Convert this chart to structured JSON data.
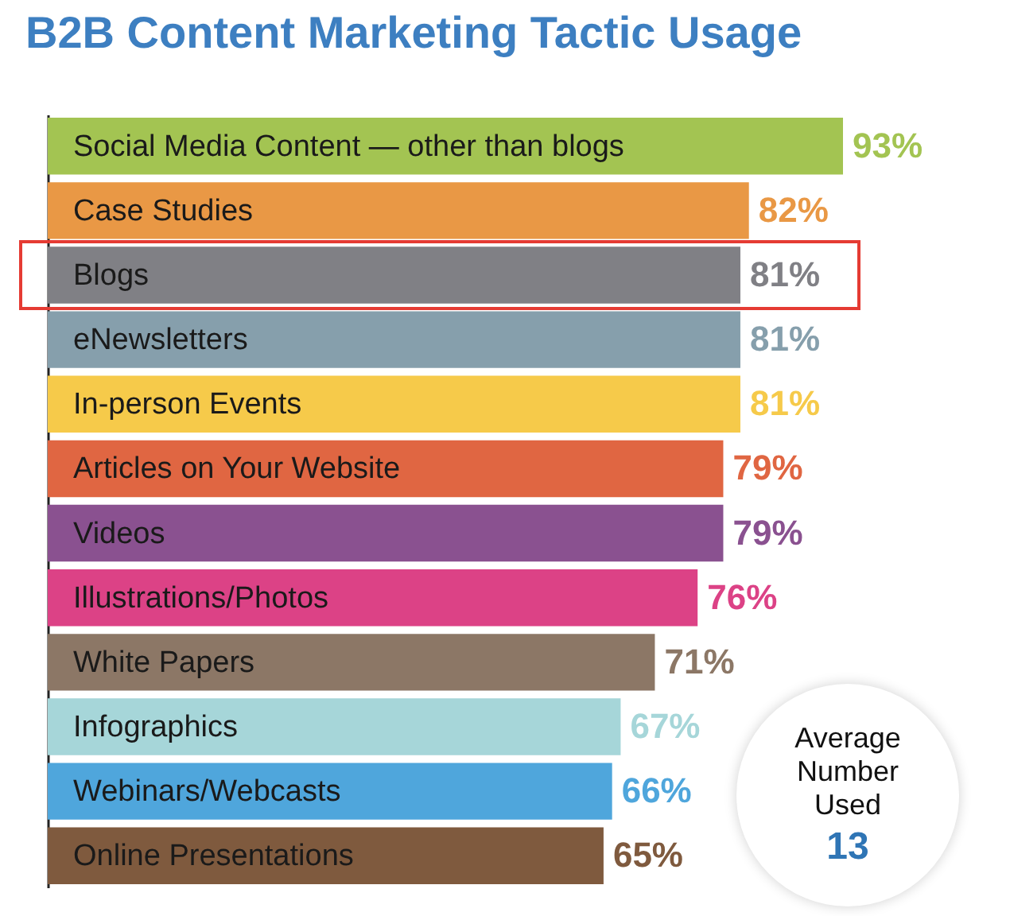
{
  "chart_data": {
    "type": "bar",
    "orientation": "horizontal",
    "title": "B2B Content Marketing Tactic Usage",
    "categories": [
      "Social Media Content — other than blogs",
      "Case Studies",
      "Blogs",
      "eNewsletters",
      "In-person Events",
      "Articles on Your Website",
      "Videos",
      "Illustrations/Photos",
      "White Papers",
      "Infographics",
      "Webinars/Webcasts",
      "Online Presentations"
    ],
    "values": [
      93,
      82,
      81,
      81,
      81,
      79,
      79,
      76,
      71,
      67,
      66,
      65
    ],
    "value_labels": [
      "93%",
      "82%",
      "81%",
      "81%",
      "81%",
      "79%",
      "79%",
      "76%",
      "71%",
      "67%",
      "66%",
      "65%"
    ],
    "colors": [
      "#a3c452",
      "#e99845",
      "#808085",
      "#869fac",
      "#f6ca4a",
      "#e06642",
      "#8a5190",
      "#dc4286",
      "#8c7766",
      "#a6d6d9",
      "#4fa6dc",
      "#7f5a3e"
    ],
    "annotations": [
      "Average Number Used",
      "13"
    ]
  }
}
